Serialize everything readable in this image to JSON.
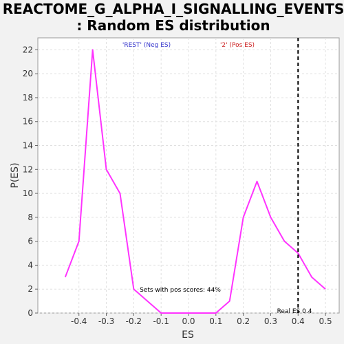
{
  "colors": {
    "background": "#f2f2f2",
    "plot_background": "#ffffff",
    "line": "#ff33ff",
    "neg_legend": "#3333cc",
    "pos_legend": "#cc2222",
    "marker": "#000000",
    "grid": "#e0e0e0"
  },
  "chart_data": {
    "type": "line",
    "title_line1": "REACTOME_G_ALPHA_I_SIGNALLING_EVENTS",
    "title_line2": ": Random ES distribution",
    "xlabel": "ES",
    "ylabel": "P(ES)",
    "xlim": [
      -0.55,
      0.55
    ],
    "ylim": [
      0,
      23
    ],
    "xticks": [
      -0.4,
      -0.3,
      -0.2,
      -0.1,
      0.0,
      0.1,
      0.2,
      0.3,
      0.4,
      0.5
    ],
    "xtick_labels": [
      "-0.4",
      "-0.3",
      "-0.2",
      "-0.1",
      "0.0",
      "0.1",
      "0.2",
      "0.3",
      "0.4",
      "0.5"
    ],
    "yticks": [
      0,
      2,
      4,
      6,
      8,
      10,
      12,
      14,
      16,
      18,
      20,
      22
    ],
    "ytick_labels": [
      "0",
      "2",
      "4",
      "6",
      "8",
      "10",
      "12",
      "14",
      "16",
      "18",
      "20",
      "22"
    ],
    "grid": true,
    "x": [
      -0.45,
      -0.4,
      -0.35,
      -0.3,
      -0.25,
      -0.2,
      -0.1,
      0.0,
      0.1,
      0.15,
      0.2,
      0.25,
      0.3,
      0.35,
      0.4,
      0.45,
      0.5
    ],
    "y": [
      3,
      6,
      22,
      12,
      10,
      2,
      0,
      0,
      0,
      1,
      8,
      11,
      8,
      6,
      5,
      3,
      2
    ],
    "legend_neg": "'REST' (Neg ES)",
    "legend_pos": "'2' (Pos ES)",
    "real_es": 0.4,
    "real_es_label": "Real ES 0.4",
    "pos_scores_text": "Sets with pos scores: 44%"
  }
}
